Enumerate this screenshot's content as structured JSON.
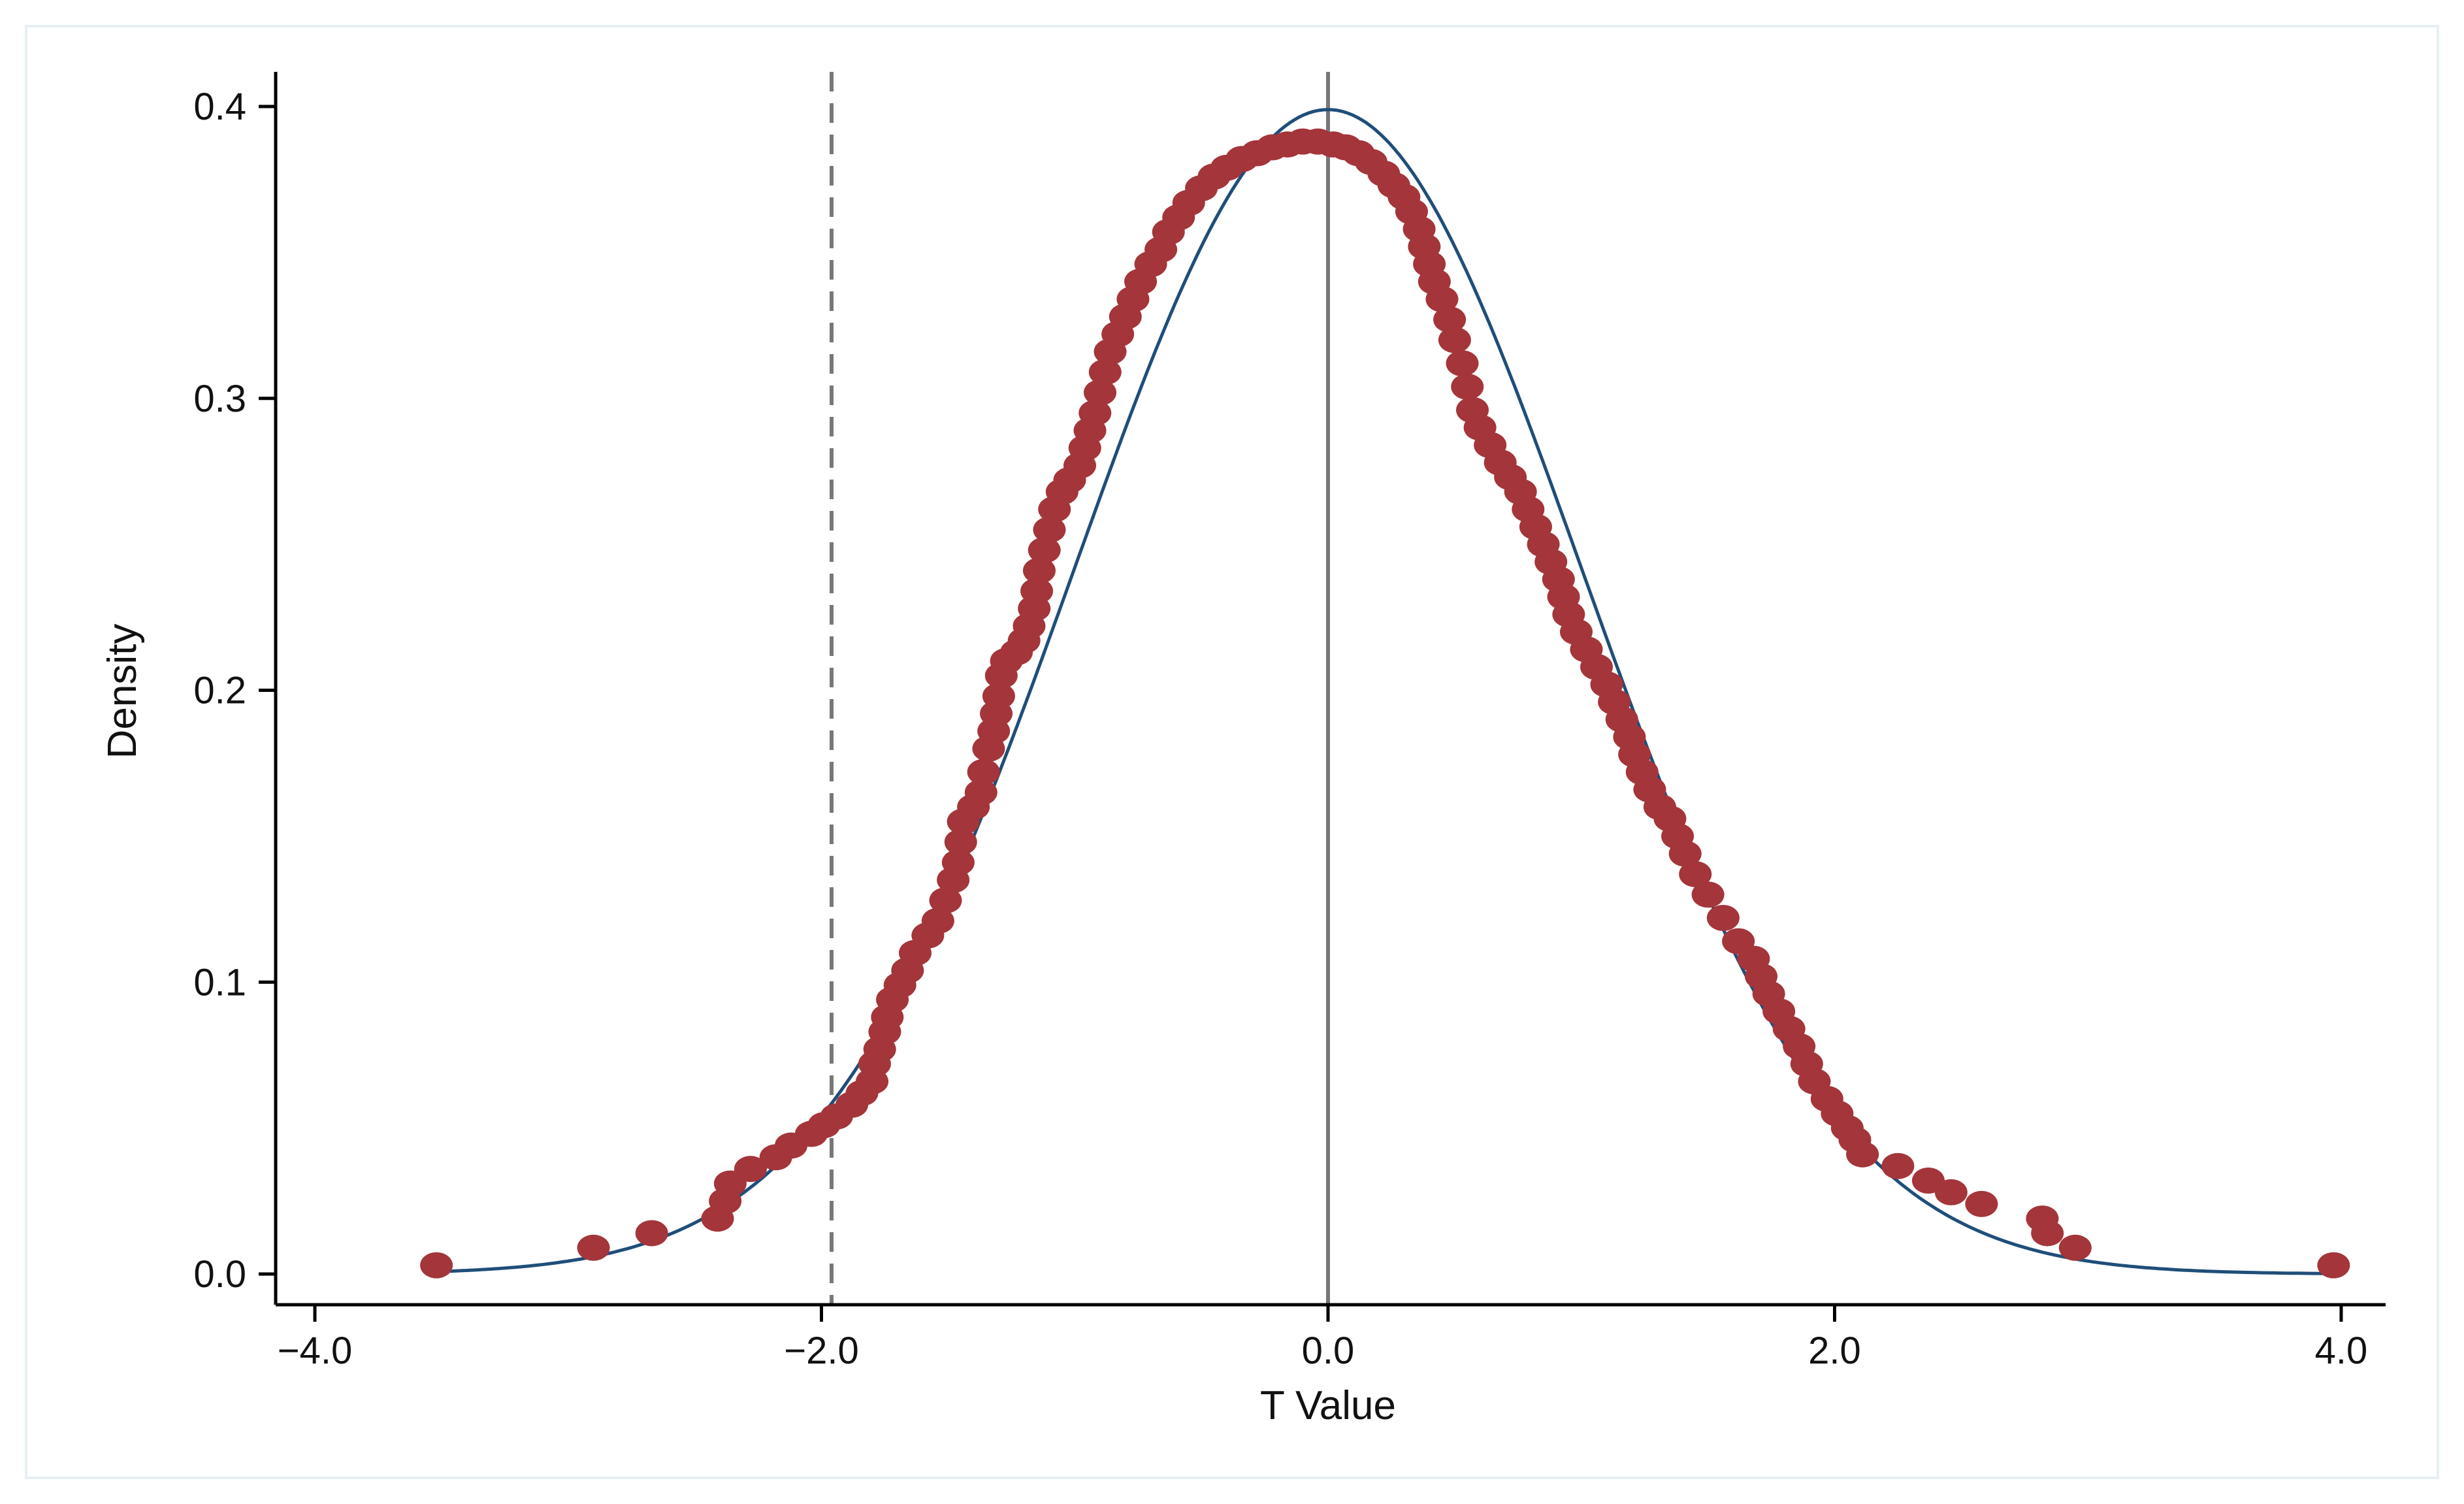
{
  "chart_data": {
    "type": "scatter",
    "title": "",
    "xlabel": "T Value",
    "ylabel": "Density",
    "xlim": [
      -4.0,
      4.0
    ],
    "ylim": [
      0.0,
      0.4
    ],
    "x_ticks": [
      -4.0,
      -2.0,
      0.0,
      2.0,
      4.0
    ],
    "x_tick_labels": [
      "−4.0",
      "−2.0",
      "0.0",
      "2.0",
      "4.0"
    ],
    "y_ticks": [
      0.0,
      0.1,
      0.2,
      0.3,
      0.4
    ],
    "y_tick_labels": [
      "0.0",
      "0.1",
      "0.2",
      "0.3",
      "0.4"
    ],
    "grid": false,
    "legend": "none",
    "reference_lines": [
      {
        "x": -1.96,
        "style": "dashed",
        "color": "#777777"
      },
      {
        "x": 0.0,
        "style": "solid",
        "color": "#777777"
      }
    ],
    "curve": {
      "kind": "normal-density",
      "mean": 0.0,
      "sd": 1.0,
      "color": "#1f4e79"
    },
    "markers": {
      "color": "#a3353b"
    },
    "points": [
      [
        -3.52,
        0.003
      ],
      [
        -2.9,
        0.009
      ],
      [
        -2.67,
        0.014
      ],
      [
        -2.41,
        0.019
      ],
      [
        -2.38,
        0.025
      ],
      [
        -2.36,
        0.031
      ],
      [
        -2.28,
        0.036
      ],
      [
        -2.18,
        0.04
      ],
      [
        -2.12,
        0.044
      ],
      [
        -2.04,
        0.048
      ],
      [
        -1.99,
        0.051
      ],
      [
        -1.94,
        0.054
      ],
      [
        -1.88,
        0.058
      ],
      [
        -1.84,
        0.062
      ],
      [
        -1.8,
        0.066
      ],
      [
        -1.79,
        0.072
      ],
      [
        -1.77,
        0.077
      ],
      [
        -1.75,
        0.083
      ],
      [
        -1.74,
        0.088
      ],
      [
        -1.72,
        0.094
      ],
      [
        -1.69,
        0.099
      ],
      [
        -1.66,
        0.104
      ],
      [
        -1.63,
        0.11
      ],
      [
        -1.58,
        0.116
      ],
      [
        -1.54,
        0.121
      ],
      [
        -1.51,
        0.128
      ],
      [
        -1.48,
        0.135
      ],
      [
        -1.46,
        0.141
      ],
      [
        -1.45,
        0.148
      ],
      [
        -1.44,
        0.155
      ],
      [
        -1.4,
        0.16
      ],
      [
        -1.37,
        0.165
      ],
      [
        -1.36,
        0.172
      ],
      [
        -1.34,
        0.18
      ],
      [
        -1.32,
        0.186
      ],
      [
        -1.31,
        0.192
      ],
      [
        -1.3,
        0.198
      ],
      [
        -1.29,
        0.205
      ],
      [
        -1.27,
        0.21
      ],
      [
        -1.23,
        0.213
      ],
      [
        -1.2,
        0.217
      ],
      [
        -1.18,
        0.222
      ],
      [
        -1.16,
        0.228
      ],
      [
        -1.15,
        0.234
      ],
      [
        -1.14,
        0.241
      ],
      [
        -1.12,
        0.248
      ],
      [
        -1.1,
        0.255
      ],
      [
        -1.08,
        0.262
      ],
      [
        -1.05,
        0.268
      ],
      [
        -1.02,
        0.272
      ],
      [
        -0.98,
        0.277
      ],
      [
        -0.96,
        0.283
      ],
      [
        -0.94,
        0.289
      ],
      [
        -0.92,
        0.295
      ],
      [
        -0.9,
        0.302
      ],
      [
        -0.88,
        0.309
      ],
      [
        -0.86,
        0.316
      ],
      [
        -0.83,
        0.322
      ],
      [
        -0.8,
        0.328
      ],
      [
        -0.77,
        0.334
      ],
      [
        -0.74,
        0.34
      ],
      [
        -0.7,
        0.346
      ],
      [
        -0.66,
        0.351
      ],
      [
        -0.63,
        0.357
      ],
      [
        -0.59,
        0.362
      ],
      [
        -0.55,
        0.367
      ],
      [
        -0.5,
        0.372
      ],
      [
        -0.45,
        0.376
      ],
      [
        -0.4,
        0.379
      ],
      [
        -0.34,
        0.382
      ],
      [
        -0.28,
        0.384
      ],
      [
        -0.22,
        0.386
      ],
      [
        -0.16,
        0.387
      ],
      [
        -0.1,
        0.388
      ],
      [
        -0.04,
        0.388
      ],
      [
        0.02,
        0.387
      ],
      [
        0.07,
        0.386
      ],
      [
        0.12,
        0.384
      ],
      [
        0.17,
        0.381
      ],
      [
        0.22,
        0.377
      ],
      [
        0.26,
        0.373
      ],
      [
        0.3,
        0.369
      ],
      [
        0.33,
        0.364
      ],
      [
        0.36,
        0.358
      ],
      [
        0.38,
        0.352
      ],
      [
        0.4,
        0.346
      ],
      [
        0.42,
        0.34
      ],
      [
        0.45,
        0.334
      ],
      [
        0.48,
        0.327
      ],
      [
        0.5,
        0.32
      ],
      [
        0.53,
        0.312
      ],
      [
        0.55,
        0.304
      ],
      [
        0.57,
        0.296
      ],
      [
        0.6,
        0.29
      ],
      [
        0.64,
        0.284
      ],
      [
        0.68,
        0.278
      ],
      [
        0.72,
        0.273
      ],
      [
        0.76,
        0.268
      ],
      [
        0.79,
        0.262
      ],
      [
        0.82,
        0.256
      ],
      [
        0.85,
        0.25
      ],
      [
        0.88,
        0.244
      ],
      [
        0.91,
        0.238
      ],
      [
        0.93,
        0.232
      ],
      [
        0.95,
        0.226
      ],
      [
        0.98,
        0.22
      ],
      [
        1.02,
        0.214
      ],
      [
        1.06,
        0.208
      ],
      [
        1.1,
        0.202
      ],
      [
        1.13,
        0.196
      ],
      [
        1.16,
        0.19
      ],
      [
        1.19,
        0.184
      ],
      [
        1.21,
        0.178
      ],
      [
        1.24,
        0.172
      ],
      [
        1.27,
        0.166
      ],
      [
        1.31,
        0.16
      ],
      [
        1.35,
        0.156
      ],
      [
        1.38,
        0.15
      ],
      [
        1.41,
        0.144
      ],
      [
        1.45,
        0.137
      ],
      [
        1.5,
        0.13
      ],
      [
        1.56,
        0.122
      ],
      [
        1.62,
        0.114
      ],
      [
        1.68,
        0.108
      ],
      [
        1.71,
        0.102
      ],
      [
        1.74,
        0.096
      ],
      [
        1.78,
        0.09
      ],
      [
        1.82,
        0.084
      ],
      [
        1.86,
        0.078
      ],
      [
        1.89,
        0.072
      ],
      [
        1.92,
        0.066
      ],
      [
        1.97,
        0.06
      ],
      [
        2.01,
        0.055
      ],
      [
        2.05,
        0.05
      ],
      [
        2.08,
        0.046
      ],
      [
        2.11,
        0.041
      ],
      [
        2.25,
        0.037
      ],
      [
        2.37,
        0.032
      ],
      [
        2.46,
        0.028
      ],
      [
        2.58,
        0.024
      ],
      [
        2.82,
        0.019
      ],
      [
        2.84,
        0.014
      ],
      [
        2.95,
        0.009
      ],
      [
        3.97,
        0.003
      ]
    ]
  }
}
